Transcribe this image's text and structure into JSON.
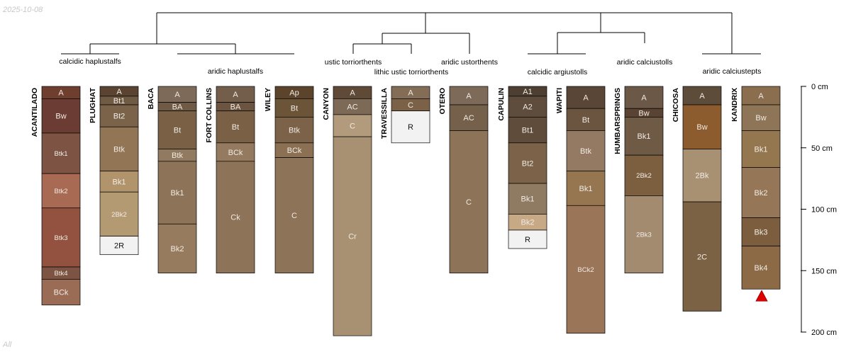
{
  "stamps": {
    "date": "2025-10-08",
    "footer": "All"
  },
  "chart_data": {
    "type": "soil-profile-sketch",
    "depth_axis": {
      "unit": "cm",
      "range": [
        0,
        200
      ],
      "ticks": [
        0,
        50,
        100,
        150,
        200
      ],
      "tick_labels": [
        "0 cm",
        "50 cm",
        "100 cm",
        "150 cm",
        "200 cm"
      ]
    },
    "profiles": [
      {
        "id": "ACANTILADO",
        "group": "calcidic haplustalfs",
        "horizons": [
          {
            "name": "A",
            "top": 0,
            "bottom": 10,
            "color": "#6e3f2f"
          },
          {
            "name": "Bw",
            "top": 10,
            "bottom": 38,
            "color": "#6b3c33"
          },
          {
            "name": "Btk1",
            "top": 38,
            "bottom": 71,
            "color": "#7d5443"
          },
          {
            "name": "Btk2",
            "top": 71,
            "bottom": 99,
            "color": "#a86a52"
          },
          {
            "name": "Btk3",
            "top": 99,
            "bottom": 147,
            "color": "#935240"
          },
          {
            "name": "Btk4",
            "top": 147,
            "bottom": 157,
            "color": "#7d5443"
          },
          {
            "name": "BCk",
            "top": 157,
            "bottom": 178,
            "color": "#9a6c55"
          }
        ]
      },
      {
        "id": "PLUGHAT",
        "group": "calcidic haplustalfs",
        "horizons": [
          {
            "name": "A",
            "top": 0,
            "bottom": 8,
            "color": "#5a4330"
          },
          {
            "name": "Bt1",
            "top": 8,
            "bottom": 15,
            "color": "#6f5a44"
          },
          {
            "name": "Bt2",
            "top": 15,
            "bottom": 33,
            "color": "#7b6349"
          },
          {
            "name": "Btk",
            "top": 33,
            "bottom": 69,
            "color": "#927555"
          },
          {
            "name": "Bk1",
            "top": 69,
            "bottom": 86,
            "color": "#b1946c"
          },
          {
            "name": "2Bk2",
            "top": 86,
            "bottom": 122,
            "color": "#b49a72"
          },
          {
            "name": "2R",
            "top": 122,
            "bottom": 137,
            "color": "#f2f2f2"
          }
        ]
      },
      {
        "id": "BACA",
        "group": "aridic haplustalfs",
        "horizons": [
          {
            "name": "A",
            "top": 0,
            "bottom": 13,
            "color": "#7e6a58"
          },
          {
            "name": "BA",
            "top": 13,
            "bottom": 20,
            "color": "#6f5a46"
          },
          {
            "name": "Bt",
            "top": 20,
            "bottom": 51,
            "color": "#7a6146"
          },
          {
            "name": "Btk",
            "top": 51,
            "bottom": 61,
            "color": "#917a60"
          },
          {
            "name": "Bk1",
            "top": 61,
            "bottom": 112,
            "color": "#8d7357"
          },
          {
            "name": "Bk2",
            "top": 112,
            "bottom": 152,
            "color": "#967b5e"
          }
        ]
      },
      {
        "id": "FORT COLLINS",
        "group": "aridic haplustalfs",
        "horizons": [
          {
            "name": "A",
            "top": 0,
            "bottom": 13,
            "color": "#735d4b"
          },
          {
            "name": "BA",
            "top": 13,
            "bottom": 20,
            "color": "#6b5440"
          },
          {
            "name": "Bt",
            "top": 20,
            "bottom": 46,
            "color": "#7a6146"
          },
          {
            "name": "BCk",
            "top": 46,
            "bottom": 61,
            "color": "#947a5e"
          },
          {
            "name": "Ck",
            "top": 61,
            "bottom": 152,
            "color": "#8d7357"
          }
        ]
      },
      {
        "id": "WILEY",
        "group": "aridic haplustalfs",
        "horizons": [
          {
            "name": "Ap",
            "top": 0,
            "bottom": 10,
            "color": "#5c442c"
          },
          {
            "name": "Bt",
            "top": 10,
            "bottom": 25,
            "color": "#6b5438"
          },
          {
            "name": "Btk",
            "top": 25,
            "bottom": 46,
            "color": "#7c6248"
          },
          {
            "name": "BCk",
            "top": 46,
            "bottom": 58,
            "color": "#8b7054"
          },
          {
            "name": "C",
            "top": 58,
            "bottom": 152,
            "color": "#8d7357"
          }
        ]
      },
      {
        "id": "CANYON",
        "group": "ustic torriorthents",
        "horizons": [
          {
            "name": "A",
            "top": 0,
            "bottom": 10,
            "color": "#5e4a36"
          },
          {
            "name": "AC",
            "top": 10,
            "bottom": 23,
            "color": "#7d6a56"
          },
          {
            "name": "C",
            "top": 23,
            "bottom": 41,
            "color": "#b29a7c"
          },
          {
            "name": "Cr",
            "top": 41,
            "bottom": 203,
            "color": "#a89072"
          }
        ]
      },
      {
        "id": "TRAVESSILLA",
        "group": "lithic ustic torriorthents",
        "horizons": [
          {
            "name": "A",
            "top": 0,
            "bottom": 10,
            "color": "#846d56"
          },
          {
            "name": "C",
            "top": 10,
            "bottom": 20,
            "color": "#7b6148"
          },
          {
            "name": "R",
            "top": 20,
            "bottom": 46,
            "color": "#f2f2f2"
          }
        ]
      },
      {
        "id": "OTERO",
        "group": "aridic ustorthents",
        "horizons": [
          {
            "name": "A",
            "top": 0,
            "bottom": 15,
            "color": "#7e6a58"
          },
          {
            "name": "AC",
            "top": 15,
            "bottom": 36,
            "color": "#74604b"
          },
          {
            "name": "C",
            "top": 36,
            "bottom": 152,
            "color": "#8d7357"
          }
        ]
      },
      {
        "id": "CAPULIN",
        "group": "calcidic argiustolls",
        "horizons": [
          {
            "name": "A1",
            "top": 0,
            "bottom": 8,
            "color": "#4e3f33"
          },
          {
            "name": "A2",
            "top": 8,
            "bottom": 25,
            "color": "#5e4c3d"
          },
          {
            "name": "Bt1",
            "top": 25,
            "bottom": 46,
            "color": "#5f4c3a"
          },
          {
            "name": "Bt2",
            "top": 46,
            "bottom": 79,
            "color": "#7b6248"
          },
          {
            "name": "Bk1",
            "top": 79,
            "bottom": 104,
            "color": "#8f7a62"
          },
          {
            "name": "Bk2",
            "top": 104,
            "bottom": 117,
            "color": "#c8a986"
          },
          {
            "name": "R",
            "top": 117,
            "bottom": 132,
            "color": "#f2f2f2"
          }
        ]
      },
      {
        "id": "WAPITI",
        "group": "calcidic argiustolls",
        "horizons": [
          {
            "name": "A",
            "top": 0,
            "bottom": 18,
            "color": "#5a4636"
          },
          {
            "name": "Bt",
            "top": 18,
            "bottom": 36,
            "color": "#6b5540"
          },
          {
            "name": "Btk",
            "top": 36,
            "bottom": 69,
            "color": "#947a62"
          },
          {
            "name": "Bk1",
            "top": 69,
            "bottom": 97,
            "color": "#967650"
          },
          {
            "name": "BCk2",
            "top": 97,
            "bottom": 201,
            "color": "#9b7558"
          }
        ]
      },
      {
        "id": "HUMBARSPRINGS",
        "group": "aridic calciustolls",
        "horizons": [
          {
            "name": "A",
            "top": 0,
            "bottom": 18,
            "color": "#6b5847"
          },
          {
            "name": "Bw",
            "top": 18,
            "bottom": 25,
            "color": "#5a4333"
          },
          {
            "name": "Bk1",
            "top": 25,
            "bottom": 56,
            "color": "#6f5a45"
          },
          {
            "name": "2Bk2",
            "top": 56,
            "bottom": 89,
            "color": "#7b5f3e"
          },
          {
            "name": "2Bk3",
            "top": 89,
            "bottom": 152,
            "color": "#a38b70"
          }
        ]
      },
      {
        "id": "CHICOSA",
        "group": "aridic calciustepts",
        "horizons": [
          {
            "name": "A",
            "top": 0,
            "bottom": 15,
            "color": "#5e4c3a"
          },
          {
            "name": "Bw",
            "top": 15,
            "bottom": 51,
            "color": "#8c5b2e"
          },
          {
            "name": "2Bk",
            "top": 51,
            "bottom": 94,
            "color": "#a89072"
          },
          {
            "name": "2C",
            "top": 94,
            "bottom": 183,
            "color": "#7b6244"
          }
        ]
      },
      {
        "id": "KANDRIX",
        "group": "aridic calciustepts",
        "horizons": [
          {
            "name": "A",
            "top": 0,
            "bottom": 15,
            "color": "#8a6e4e"
          },
          {
            "name": "Bw",
            "top": 15,
            "bottom": 36,
            "color": "#8e7557"
          },
          {
            "name": "Bk1",
            "top": 36,
            "bottom": 66,
            "color": "#94774f"
          },
          {
            "name": "Bk2",
            "top": 66,
            "bottom": 107,
            "color": "#957656"
          },
          {
            "name": "Bk3",
            "top": 107,
            "bottom": 130,
            "color": "#7c5e3f"
          },
          {
            "name": "Bk4",
            "top": 130,
            "bottom": 165,
            "color": "#8c6a45"
          }
        ],
        "truncated": true
      }
    ],
    "group_labels": [
      "calcidic haplustalfs",
      "aridic haplustalfs",
      "ustic torriorthents",
      "lithic ustic torriorthents",
      "aridic ustorthents",
      "calcidic argiustolls",
      "aridic calciustolls",
      "aridic calciustepts"
    ]
  }
}
